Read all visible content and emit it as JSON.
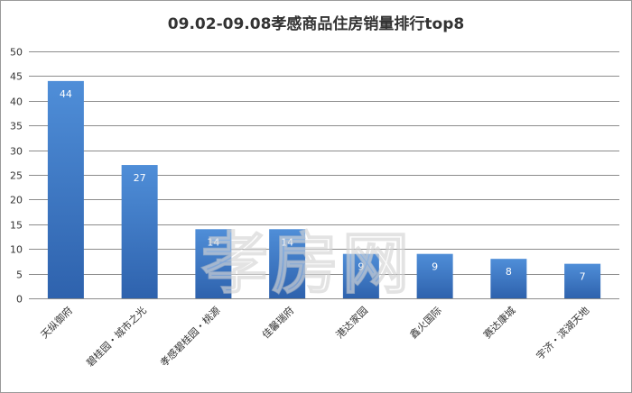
{
  "chart_data": {
    "type": "bar",
    "title": "09.02-09.08孝感商品住房销量排行top8",
    "categories": [
      "天纵御府",
      "碧桂园・城市之光",
      "孝感碧桂园・桃源",
      "佳馨瑞府",
      "港达家园",
      "鑫火国际",
      "赛达康城",
      "宇济・滨湖天地"
    ],
    "values": [
      44,
      27,
      14,
      14,
      9,
      9,
      8,
      7
    ],
    "ylim": [
      0,
      50
    ],
    "yticks": [
      0,
      5,
      10,
      15,
      20,
      25,
      30,
      35,
      40,
      45,
      50
    ],
    "xlabel": "",
    "ylabel": "",
    "grid": true,
    "colors": {
      "bar_top": "#4f8ed8",
      "bar_bottom": "#2e62ad",
      "grid": "#8c8c8c",
      "data_label": "#ffffff"
    }
  },
  "watermark": "孝房网"
}
